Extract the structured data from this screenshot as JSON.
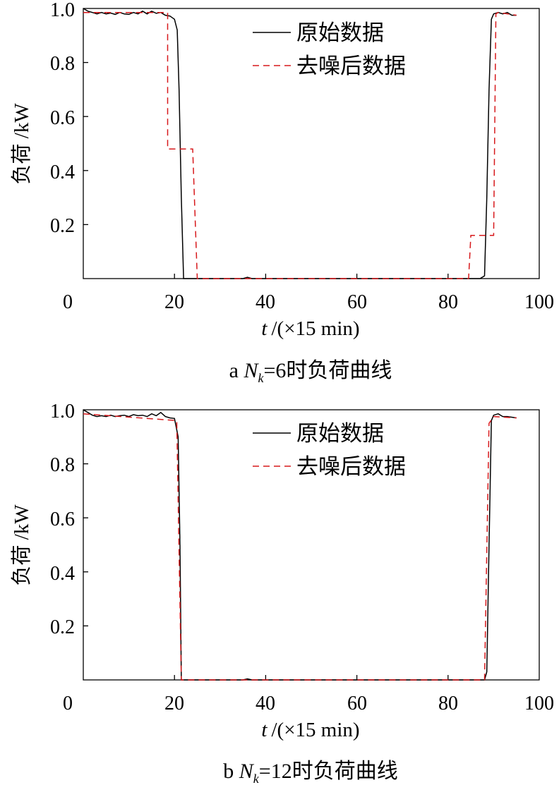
{
  "colors": {
    "original": "#000000",
    "denoised": "#d7191c"
  },
  "chart_data": [
    {
      "type": "line",
      "caption": {
        "prefix": "a ",
        "var": "N",
        "sub": "k",
        "suffix": "=6时负荷曲线"
      },
      "xlabel": {
        "var": "t",
        "rest": "/(×15 min)"
      },
      "ylabel": "负荷 /kW",
      "xlim": [
        0,
        100
      ],
      "ylim": [
        0,
        1.0
      ],
      "xticks": [
        0,
        20,
        40,
        60,
        80,
        100
      ],
      "xtick_labels": [
        "0",
        "20",
        "40",
        "60",
        "80",
        "100"
      ],
      "yticks": [
        0.2,
        0.4,
        0.6,
        0.8,
        1.0
      ],
      "ytick_labels": [
        "0.2",
        "0.4",
        "0.6",
        "0.8",
        "1.0"
      ],
      "legend": {
        "position": "top-right",
        "items": [
          "原始数据",
          "去噪后数据"
        ]
      },
      "series": [
        {
          "name": "原始数据",
          "style": "solid",
          "points": [
            [
              0,
              1.0
            ],
            [
              1,
              0.99
            ],
            [
              2,
              0.985
            ],
            [
              3,
              0.98
            ],
            [
              4,
              0.985
            ],
            [
              5,
              0.98
            ],
            [
              6,
              0.983
            ],
            [
              7,
              0.978
            ],
            [
              8,
              0.985
            ],
            [
              9,
              0.98
            ],
            [
              10,
              0.978
            ],
            [
              11,
              0.985
            ],
            [
              12,
              0.98
            ],
            [
              13,
              0.99
            ],
            [
              14,
              0.98
            ],
            [
              15,
              0.99
            ],
            [
              16,
              0.982
            ],
            [
              17,
              0.985
            ],
            [
              18,
              0.975
            ],
            [
              19,
              0.972
            ],
            [
              20,
              0.96
            ],
            [
              20.6,
              0.92
            ],
            [
              21,
              0.7
            ],
            [
              21.5,
              0.3
            ],
            [
              22,
              0.0
            ],
            [
              35,
              0.0
            ],
            [
              36,
              0.005
            ],
            [
              37,
              0.0
            ],
            [
              87,
              0.0
            ],
            [
              88,
              0.01
            ],
            [
              88.5,
              0.3
            ],
            [
              89,
              0.7
            ],
            [
              89.5,
              0.96
            ],
            [
              90,
              0.98
            ],
            [
              91,
              0.985
            ],
            [
              92,
              0.98
            ],
            [
              93,
              0.985
            ],
            [
              94,
              0.975
            ],
            [
              95,
              0.975
            ]
          ]
        },
        {
          "name": "去噪后数据",
          "style": "dashed",
          "points": [
            [
              0,
              0.985
            ],
            [
              18.5,
              0.985
            ],
            [
              18.5,
              0.48
            ],
            [
              24,
              0.48
            ],
            [
              25,
              0.0
            ],
            [
              84.5,
              0.0
            ],
            [
              85,
              0.16
            ],
            [
              90,
              0.16
            ],
            [
              90.5,
              0.98
            ],
            [
              91,
              0.985
            ],
            [
              95,
              0.975
            ]
          ]
        }
      ]
    },
    {
      "type": "line",
      "caption": {
        "prefix": "b ",
        "var": "N",
        "sub": "k",
        "suffix": "=12时负荷曲线"
      },
      "xlabel": {
        "var": "t",
        "rest": "/(×15 min)"
      },
      "ylabel": "负荷 /kW",
      "xlim": [
        0,
        100
      ],
      "ylim": [
        0,
        1.0
      ],
      "xticks": [
        0,
        20,
        40,
        60,
        80,
        100
      ],
      "xtick_labels": [
        "0",
        "20",
        "40",
        "60",
        "80",
        "100"
      ],
      "yticks": [
        0.2,
        0.4,
        0.6,
        0.8,
        1.0
      ],
      "ytick_labels": [
        "0.2",
        "0.4",
        "0.6",
        "0.8",
        "1.0"
      ],
      "legend": {
        "position": "top-right",
        "items": [
          "原始数据",
          "去噪后数据"
        ]
      },
      "series": [
        {
          "name": "原始数据",
          "style": "solid",
          "points": [
            [
              0,
              1.0
            ],
            [
              1,
              0.99
            ],
            [
              2,
              0.98
            ],
            [
              3,
              0.975
            ],
            [
              4,
              0.978
            ],
            [
              5,
              0.975
            ],
            [
              6,
              0.98
            ],
            [
              7,
              0.975
            ],
            [
              8,
              0.978
            ],
            [
              9,
              0.98
            ],
            [
              10,
              0.975
            ],
            [
              11,
              0.982
            ],
            [
              12,
              0.978
            ],
            [
              13,
              0.98
            ],
            [
              14,
              0.975
            ],
            [
              15,
              0.985
            ],
            [
              16,
              0.978
            ],
            [
              17,
              0.99
            ],
            [
              18,
              0.975
            ],
            [
              19,
              0.97
            ],
            [
              20,
              0.968
            ],
            [
              20.8,
              0.9
            ],
            [
              21.2,
              0.5
            ],
            [
              21.5,
              0.0
            ],
            [
              35,
              0.0
            ],
            [
              36,
              0.004
            ],
            [
              37,
              0.0
            ],
            [
              88,
              0.0
            ],
            [
              88.5,
              0.03
            ],
            [
              89,
              0.5
            ],
            [
              89.5,
              0.96
            ],
            [
              90,
              0.98
            ],
            [
              91,
              0.985
            ],
            [
              92,
              0.975
            ],
            [
              93,
              0.975
            ],
            [
              95,
              0.97
            ]
          ]
        },
        {
          "name": "去噪后数据",
          "style": "dashed",
          "points": [
            [
              0,
              0.985
            ],
            [
              20.5,
              0.96
            ],
            [
              21.5,
              0.0
            ],
            [
              88,
              0.0
            ],
            [
              89,
              0.95
            ],
            [
              90,
              0.975
            ],
            [
              95,
              0.97
            ]
          ]
        }
      ]
    }
  ]
}
